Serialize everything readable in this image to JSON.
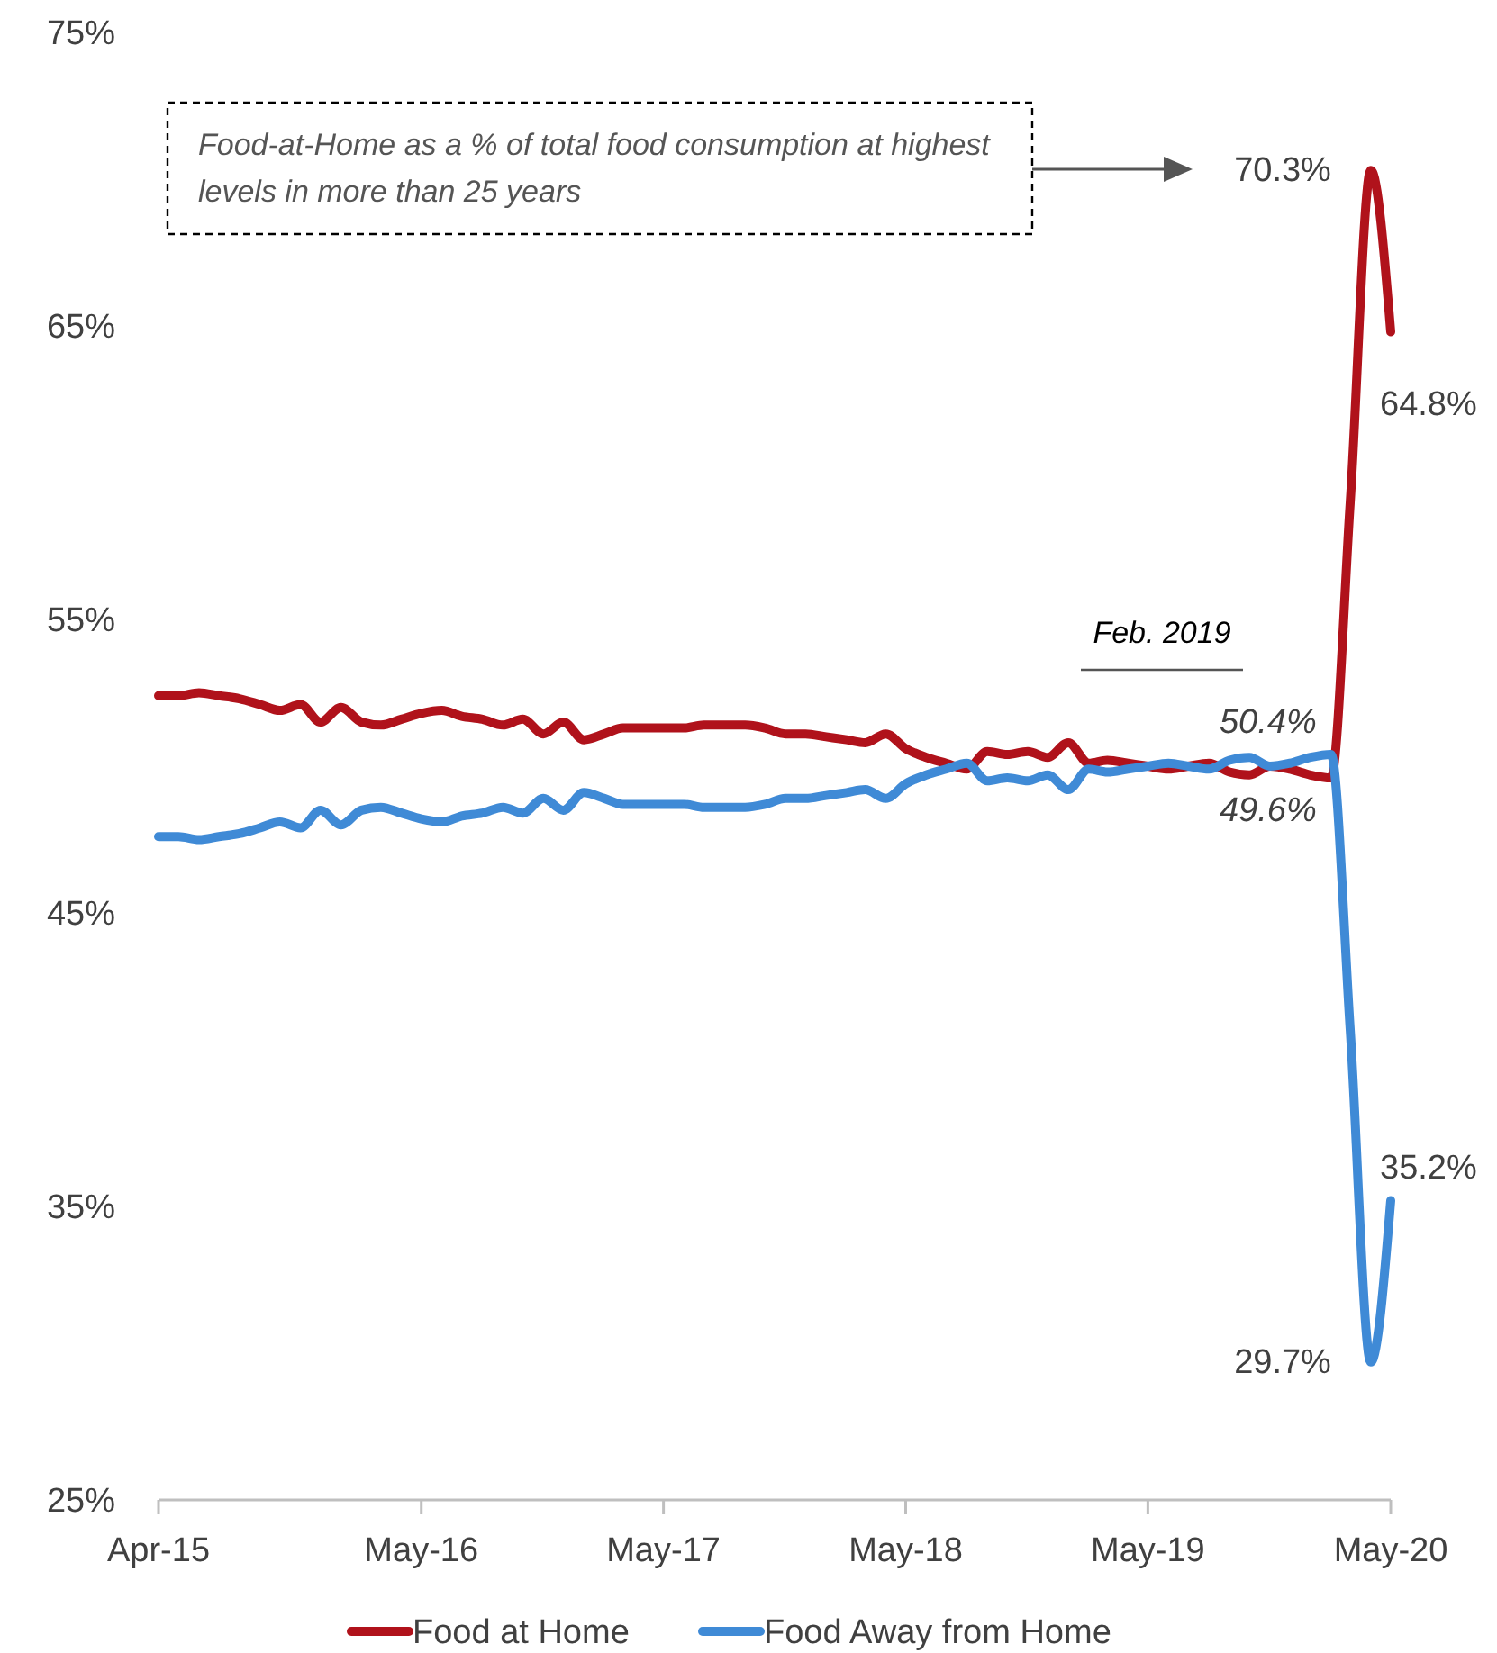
{
  "chart_data": {
    "type": "line",
    "x": [
      "2015-04",
      "2015-05",
      "2015-06",
      "2015-07",
      "2015-08",
      "2015-09",
      "2015-10",
      "2015-11",
      "2015-12",
      "2016-01",
      "2016-02",
      "2016-03",
      "2016-04",
      "2016-05",
      "2016-06",
      "2016-07",
      "2016-08",
      "2016-09",
      "2016-10",
      "2016-11",
      "2016-12",
      "2017-01",
      "2017-02",
      "2017-03",
      "2017-04",
      "2017-05",
      "2017-06",
      "2017-07",
      "2017-08",
      "2017-09",
      "2017-10",
      "2017-11",
      "2017-12",
      "2018-01",
      "2018-02",
      "2018-03",
      "2018-04",
      "2018-05",
      "2018-06",
      "2018-07",
      "2018-08",
      "2018-09",
      "2018-10",
      "2018-11",
      "2018-12",
      "2019-01",
      "2019-02",
      "2019-03",
      "2019-04",
      "2019-05",
      "2019-06",
      "2019-07",
      "2019-08",
      "2019-09",
      "2019-10",
      "2019-11",
      "2019-12",
      "2020-01",
      "2020-02",
      "2020-03",
      "2020-04",
      "2020-05"
    ],
    "series": [
      {
        "name": "Food at Home",
        "color": "#b0121b",
        "values": [
          52.4,
          52.4,
          52.5,
          52.4,
          52.3,
          52.1,
          51.9,
          52.1,
          51.5,
          52.0,
          51.5,
          51.4,
          51.6,
          51.8,
          51.9,
          51.7,
          51.6,
          51.4,
          51.6,
          51.1,
          51.5,
          50.9,
          51.1,
          51.3,
          51.3,
          51.3,
          51.3,
          51.4,
          51.4,
          51.4,
          51.3,
          51.1,
          51.1,
          51.0,
          50.9,
          50.8,
          51.1,
          50.6,
          50.3,
          50.1,
          49.9,
          50.5,
          50.4,
          50.5,
          50.3,
          50.8,
          50.1,
          50.2,
          50.1,
          50.0,
          49.9,
          50.0,
          50.1,
          49.8,
          49.7,
          50.0,
          49.9,
          49.7,
          49.6,
          59.0,
          70.3,
          64.8
        ],
        "value_labels": [
          null,
          null,
          null,
          null,
          null,
          null,
          null,
          null,
          null,
          null,
          null,
          null,
          null,
          null,
          null,
          null,
          null,
          null,
          null,
          null,
          null,
          null,
          null,
          null,
          null,
          null,
          null,
          null,
          null,
          null,
          null,
          null,
          null,
          null,
          null,
          null,
          null,
          null,
          null,
          null,
          null,
          null,
          null,
          null,
          null,
          null,
          null,
          null,
          null,
          null,
          null,
          null,
          null,
          null,
          null,
          null,
          null,
          null,
          "49.6%",
          null,
          "70.3%",
          "64.8%"
        ]
      },
      {
        "name": "Food Away from Home",
        "color": "#3f8ad6",
        "values": [
          47.6,
          47.6,
          47.5,
          47.6,
          47.7,
          47.9,
          48.1,
          47.9,
          48.5,
          48.0,
          48.5,
          48.6,
          48.4,
          48.2,
          48.1,
          48.3,
          48.4,
          48.6,
          48.4,
          48.9,
          48.5,
          49.1,
          48.9,
          48.7,
          48.7,
          48.7,
          48.7,
          48.6,
          48.6,
          48.6,
          48.7,
          48.9,
          48.9,
          49.0,
          49.1,
          49.2,
          48.9,
          49.4,
          49.7,
          49.9,
          50.1,
          49.5,
          49.6,
          49.5,
          49.7,
          49.2,
          49.9,
          49.8,
          49.9,
          50.0,
          50.1,
          50.0,
          49.9,
          50.2,
          50.3,
          50.0,
          50.1,
          50.3,
          50.4,
          41.0,
          29.7,
          35.2
        ],
        "value_labels": [
          null,
          null,
          null,
          null,
          null,
          null,
          null,
          null,
          null,
          null,
          null,
          null,
          null,
          null,
          null,
          null,
          null,
          null,
          null,
          null,
          null,
          null,
          null,
          null,
          null,
          null,
          null,
          null,
          null,
          null,
          null,
          null,
          null,
          null,
          null,
          null,
          null,
          null,
          null,
          null,
          null,
          null,
          null,
          null,
          null,
          null,
          null,
          null,
          null,
          null,
          null,
          null,
          null,
          null,
          null,
          null,
          null,
          null,
          "50.4%",
          null,
          "29.7%",
          "35.2%"
        ]
      }
    ],
    "xlim": [
      "2015-04",
      "2020-05"
    ],
    "xticks": [
      {
        "value": "2015-04",
        "label": "Apr-15"
      },
      {
        "value": "2016-05",
        "label": "May-16"
      },
      {
        "value": "2017-05",
        "label": "May-17"
      },
      {
        "value": "2018-05",
        "label": "May-18"
      },
      {
        "value": "2019-05",
        "label": "May-19"
      },
      {
        "value": "2020-05",
        "label": "May-20"
      }
    ],
    "ylim": [
      25,
      75
    ],
    "yticks": [
      {
        "value": 25,
        "label": "25%"
      },
      {
        "value": 35,
        "label": "35%"
      },
      {
        "value": 45,
        "label": "45%"
      },
      {
        "value": 55,
        "label": "55%"
      },
      {
        "value": 65,
        "label": "65%"
      },
      {
        "value": 75,
        "label": "75%"
      }
    ],
    "grid": false,
    "legend": "bottom",
    "marker": "none",
    "line_style": "solid",
    "annotations": [
      "Food-at-Home as a % of total food consumption at highest levels in more than 25 years",
      "Feb. 2019"
    ]
  }
}
